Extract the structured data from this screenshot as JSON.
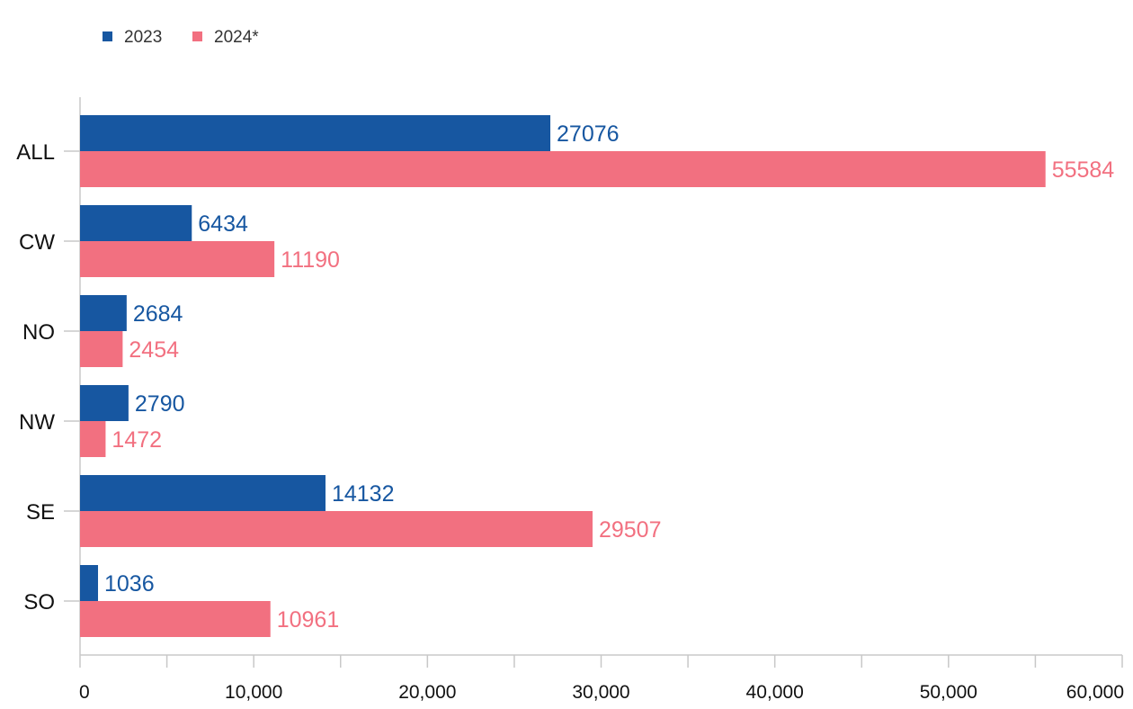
{
  "chart_data": {
    "type": "bar",
    "orientation": "horizontal",
    "categories": [
      "ALL",
      "CW",
      "NO",
      "NW",
      "SE",
      "SO"
    ],
    "series": [
      {
        "name": "2023",
        "color": "#1757a1",
        "values": [
          27076,
          6434,
          2684,
          2790,
          14132,
          1036
        ]
      },
      {
        "name": "2024*",
        "color": "#f27080",
        "values": [
          55584,
          11190,
          2454,
          1472,
          29507,
          10961
        ]
      }
    ],
    "xlim": [
      0,
      60000
    ],
    "x_ticks": [
      0,
      10000,
      20000,
      30000,
      40000,
      50000,
      60000
    ],
    "x_tick_labels": [
      "0",
      "10,000",
      "20,000",
      "30,000",
      "40,000",
      "50,000",
      "60,000"
    ],
    "data_labels": true,
    "legend_position": "top-left",
    "grid": false,
    "title": "",
    "xlabel": "",
    "ylabel": ""
  }
}
